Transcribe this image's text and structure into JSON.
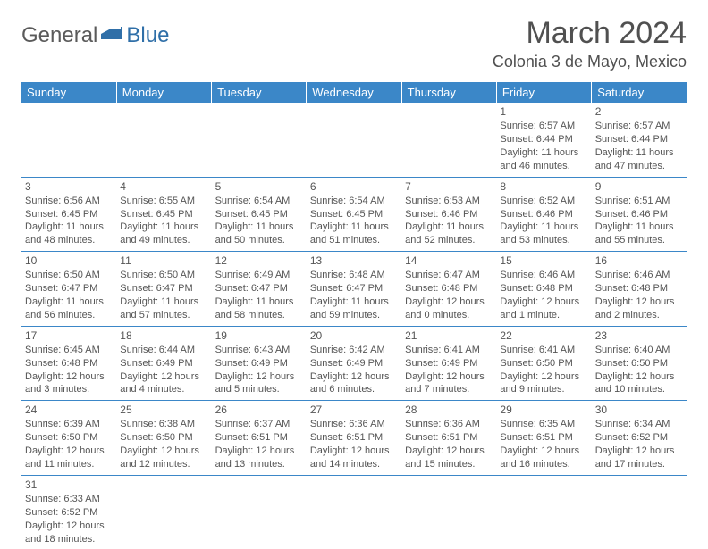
{
  "logo": {
    "part1": "General",
    "part2": "Blue"
  },
  "title": "March 2024",
  "location": "Colonia 3 de Mayo, Mexico",
  "headers": [
    "Sunday",
    "Monday",
    "Tuesday",
    "Wednesday",
    "Thursday",
    "Friday",
    "Saturday"
  ],
  "colors": {
    "header_bg": "#3b87c8",
    "header_fg": "#ffffff",
    "border": "#3b87c8"
  },
  "weeks": [
    [
      null,
      null,
      null,
      null,
      null,
      {
        "n": "1",
        "sr": "Sunrise: 6:57 AM",
        "ss": "Sunset: 6:44 PM",
        "dl": "Daylight: 11 hours and 46 minutes."
      },
      {
        "n": "2",
        "sr": "Sunrise: 6:57 AM",
        "ss": "Sunset: 6:44 PM",
        "dl": "Daylight: 11 hours and 47 minutes."
      }
    ],
    [
      {
        "n": "3",
        "sr": "Sunrise: 6:56 AM",
        "ss": "Sunset: 6:45 PM",
        "dl": "Daylight: 11 hours and 48 minutes."
      },
      {
        "n": "4",
        "sr": "Sunrise: 6:55 AM",
        "ss": "Sunset: 6:45 PM",
        "dl": "Daylight: 11 hours and 49 minutes."
      },
      {
        "n": "5",
        "sr": "Sunrise: 6:54 AM",
        "ss": "Sunset: 6:45 PM",
        "dl": "Daylight: 11 hours and 50 minutes."
      },
      {
        "n": "6",
        "sr": "Sunrise: 6:54 AM",
        "ss": "Sunset: 6:45 PM",
        "dl": "Daylight: 11 hours and 51 minutes."
      },
      {
        "n": "7",
        "sr": "Sunrise: 6:53 AM",
        "ss": "Sunset: 6:46 PM",
        "dl": "Daylight: 11 hours and 52 minutes."
      },
      {
        "n": "8",
        "sr": "Sunrise: 6:52 AM",
        "ss": "Sunset: 6:46 PM",
        "dl": "Daylight: 11 hours and 53 minutes."
      },
      {
        "n": "9",
        "sr": "Sunrise: 6:51 AM",
        "ss": "Sunset: 6:46 PM",
        "dl": "Daylight: 11 hours and 55 minutes."
      }
    ],
    [
      {
        "n": "10",
        "sr": "Sunrise: 6:50 AM",
        "ss": "Sunset: 6:47 PM",
        "dl": "Daylight: 11 hours and 56 minutes."
      },
      {
        "n": "11",
        "sr": "Sunrise: 6:50 AM",
        "ss": "Sunset: 6:47 PM",
        "dl": "Daylight: 11 hours and 57 minutes."
      },
      {
        "n": "12",
        "sr": "Sunrise: 6:49 AM",
        "ss": "Sunset: 6:47 PM",
        "dl": "Daylight: 11 hours and 58 minutes."
      },
      {
        "n": "13",
        "sr": "Sunrise: 6:48 AM",
        "ss": "Sunset: 6:47 PM",
        "dl": "Daylight: 11 hours and 59 minutes."
      },
      {
        "n": "14",
        "sr": "Sunrise: 6:47 AM",
        "ss": "Sunset: 6:48 PM",
        "dl": "Daylight: 12 hours and 0 minutes."
      },
      {
        "n": "15",
        "sr": "Sunrise: 6:46 AM",
        "ss": "Sunset: 6:48 PM",
        "dl": "Daylight: 12 hours and 1 minute."
      },
      {
        "n": "16",
        "sr": "Sunrise: 6:46 AM",
        "ss": "Sunset: 6:48 PM",
        "dl": "Daylight: 12 hours and 2 minutes."
      }
    ],
    [
      {
        "n": "17",
        "sr": "Sunrise: 6:45 AM",
        "ss": "Sunset: 6:48 PM",
        "dl": "Daylight: 12 hours and 3 minutes."
      },
      {
        "n": "18",
        "sr": "Sunrise: 6:44 AM",
        "ss": "Sunset: 6:49 PM",
        "dl": "Daylight: 12 hours and 4 minutes."
      },
      {
        "n": "19",
        "sr": "Sunrise: 6:43 AM",
        "ss": "Sunset: 6:49 PM",
        "dl": "Daylight: 12 hours and 5 minutes."
      },
      {
        "n": "20",
        "sr": "Sunrise: 6:42 AM",
        "ss": "Sunset: 6:49 PM",
        "dl": "Daylight: 12 hours and 6 minutes."
      },
      {
        "n": "21",
        "sr": "Sunrise: 6:41 AM",
        "ss": "Sunset: 6:49 PM",
        "dl": "Daylight: 12 hours and 7 minutes."
      },
      {
        "n": "22",
        "sr": "Sunrise: 6:41 AM",
        "ss": "Sunset: 6:50 PM",
        "dl": "Daylight: 12 hours and 9 minutes."
      },
      {
        "n": "23",
        "sr": "Sunrise: 6:40 AM",
        "ss": "Sunset: 6:50 PM",
        "dl": "Daylight: 12 hours and 10 minutes."
      }
    ],
    [
      {
        "n": "24",
        "sr": "Sunrise: 6:39 AM",
        "ss": "Sunset: 6:50 PM",
        "dl": "Daylight: 12 hours and 11 minutes."
      },
      {
        "n": "25",
        "sr": "Sunrise: 6:38 AM",
        "ss": "Sunset: 6:50 PM",
        "dl": "Daylight: 12 hours and 12 minutes."
      },
      {
        "n": "26",
        "sr": "Sunrise: 6:37 AM",
        "ss": "Sunset: 6:51 PM",
        "dl": "Daylight: 12 hours and 13 minutes."
      },
      {
        "n": "27",
        "sr": "Sunrise: 6:36 AM",
        "ss": "Sunset: 6:51 PM",
        "dl": "Daylight: 12 hours and 14 minutes."
      },
      {
        "n": "28",
        "sr": "Sunrise: 6:36 AM",
        "ss": "Sunset: 6:51 PM",
        "dl": "Daylight: 12 hours and 15 minutes."
      },
      {
        "n": "29",
        "sr": "Sunrise: 6:35 AM",
        "ss": "Sunset: 6:51 PM",
        "dl": "Daylight: 12 hours and 16 minutes."
      },
      {
        "n": "30",
        "sr": "Sunrise: 6:34 AM",
        "ss": "Sunset: 6:52 PM",
        "dl": "Daylight: 12 hours and 17 minutes."
      }
    ],
    [
      {
        "n": "31",
        "sr": "Sunrise: 6:33 AM",
        "ss": "Sunset: 6:52 PM",
        "dl": "Daylight: 12 hours and 18 minutes."
      },
      null,
      null,
      null,
      null,
      null,
      null
    ]
  ]
}
